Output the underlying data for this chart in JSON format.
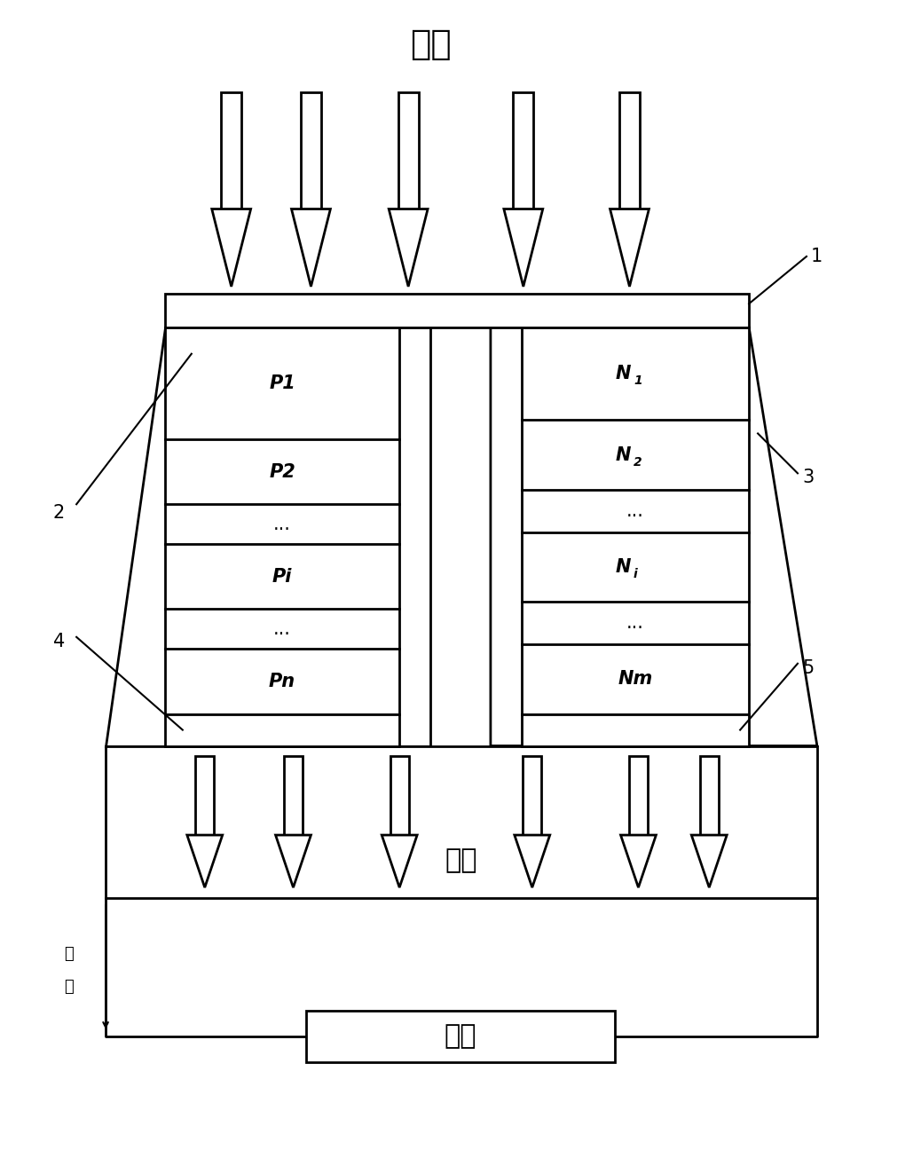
{
  "bg_color": "#ffffff",
  "hot_source_label": "热源",
  "cold_source_label": "冷源",
  "load_label": "负载",
  "current_label_1": "电",
  "current_label_2": "流",
  "label_1": "1",
  "label_2": "2",
  "label_3": "3",
  "label_4": "4",
  "label_5": "5",
  "p_segments": [
    "P1",
    "P2",
    "...",
    "Pi",
    "...",
    "Pn"
  ],
  "n_segments_base": [
    "N",
    "N",
    "...",
    "N",
    "...",
    "Nm"
  ],
  "n_subscripts": [
    "1",
    "2",
    "",
    "i",
    "",
    ""
  ],
  "line_color": "#000000",
  "lw": 2.0,
  "fig_width": 10.38,
  "fig_height": 13.23
}
